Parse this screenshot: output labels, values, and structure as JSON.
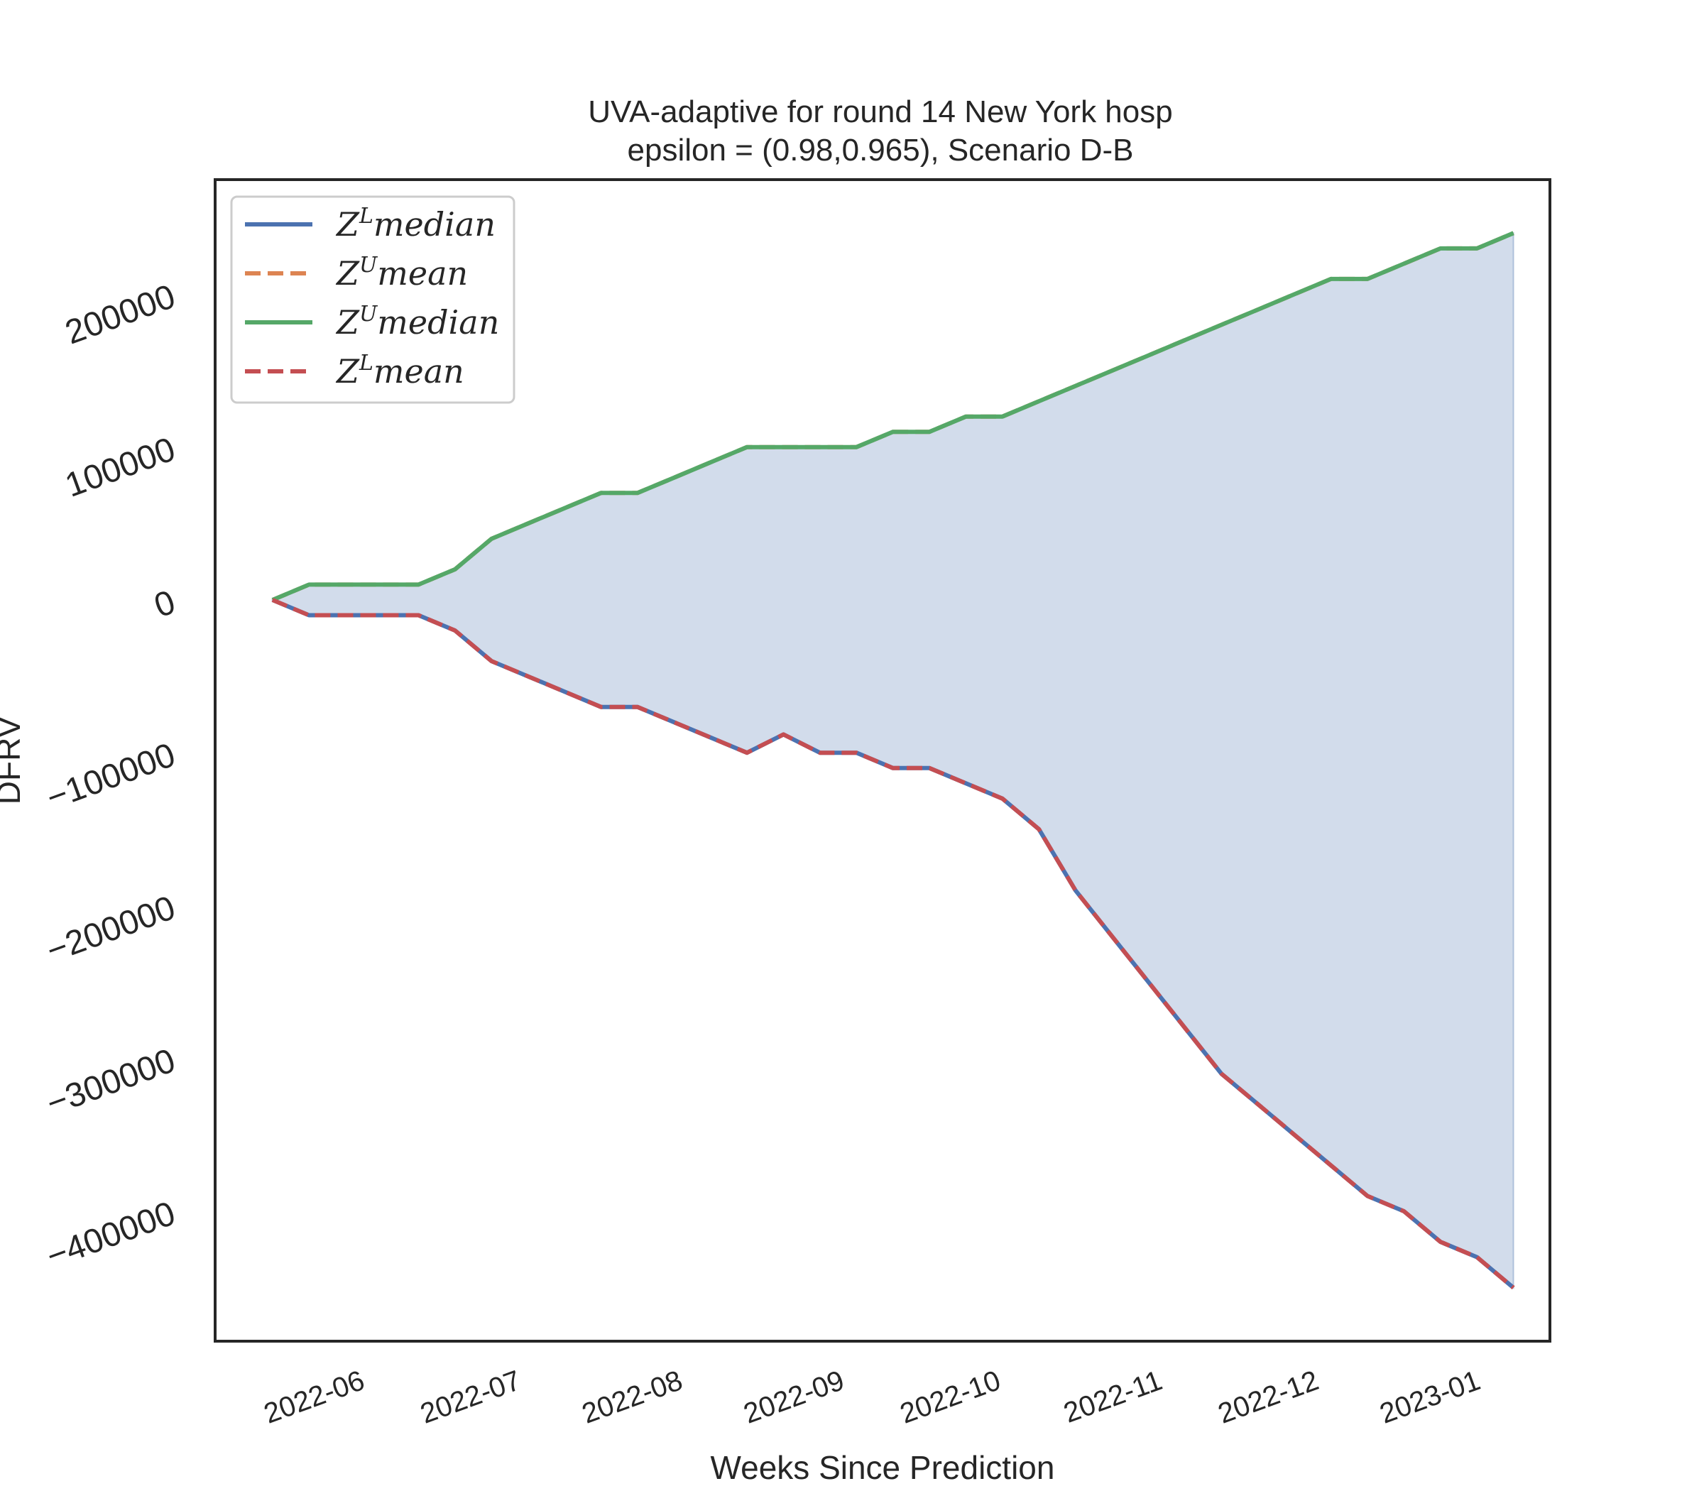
{
  "chart_data": {
    "type": "line",
    "title": "UVA-adaptive for round 14 New York  hosp",
    "subtitle": "epsilon = (0.98,0.965), Scenario D-B",
    "xlabel": "Weeks Since Prediction",
    "ylabel": "DFRV",
    "x_ticks": [
      "2022-06",
      "2022-07",
      "2022-08",
      "2022-09",
      "2022-10",
      "2022-11",
      "2022-12",
      "2023-01"
    ],
    "y_ticks": [
      200000,
      100000,
      0,
      -100000,
      -200000,
      -300000,
      -400000
    ],
    "y_tick_labels": [
      "200000",
      "100000",
      "0",
      "−100000",
      "−200000",
      "−300000",
      "−400000"
    ],
    "ylim": [
      -485000,
      275000
    ],
    "xlim": [
      "2022-05-03",
      "2023-01-14"
    ],
    "grid": false,
    "legend_position": "upper left",
    "x": [
      "2022-05-14",
      "2022-05-21",
      "2022-05-28",
      "2022-06-04",
      "2022-06-11",
      "2022-06-18",
      "2022-06-25",
      "2022-07-02",
      "2022-07-09",
      "2022-07-16",
      "2022-07-23",
      "2022-07-30",
      "2022-08-06",
      "2022-08-13",
      "2022-08-20",
      "2022-08-27",
      "2022-09-03",
      "2022-09-10",
      "2022-09-17",
      "2022-09-24",
      "2022-10-01",
      "2022-10-08",
      "2022-10-15",
      "2022-10-22",
      "2022-10-29",
      "2022-11-05",
      "2022-11-12",
      "2022-11-19",
      "2022-11-26",
      "2022-12-03",
      "2022-12-10",
      "2022-12-17",
      "2022-12-24",
      "2022-12-31",
      "2023-01-07"
    ],
    "series": [
      {
        "name": "median",
        "label_base": "Z",
        "label_sup": "L",
        "label_rest": "median",
        "color": "#4c72b0",
        "dash": "solid",
        "values": [
          0,
          -10000,
          -10000,
          -10000,
          -10000,
          -20000,
          -40000,
          -50000,
          -60000,
          -70000,
          -70000,
          -80000,
          -90000,
          -100000,
          -88000,
          -100000,
          -100000,
          -110000,
          -110000,
          -120000,
          -130000,
          -150000,
          -190000,
          -220000,
          -250000,
          -280000,
          -310000,
          -330000,
          -350000,
          -370000,
          -390000,
          -400000,
          -420000,
          -430000,
          -450000
        ]
      },
      {
        "name": "mean",
        "label_base": "Z",
        "label_sup": "U",
        "label_rest": "mean",
        "color": "#dd8452",
        "dash": "dashed",
        "values": [
          0,
          10000,
          10000,
          10000,
          10000,
          20000,
          40000,
          50000,
          60000,
          70000,
          70000,
          80000,
          90000,
          100000,
          100000,
          100000,
          100000,
          110000,
          110000,
          120000,
          120000,
          130000,
          140000,
          150000,
          160000,
          170000,
          180000,
          190000,
          200000,
          210000,
          210000,
          220000,
          230000,
          230000,
          240000
        ]
      },
      {
        "name": "median",
        "label_base": "Z",
        "label_sup": "U",
        "label_rest": "median",
        "color": "#55a868",
        "dash": "solid",
        "values": [
          0,
          10000,
          10000,
          10000,
          10000,
          20000,
          40000,
          50000,
          60000,
          70000,
          70000,
          80000,
          90000,
          100000,
          100000,
          100000,
          100000,
          110000,
          110000,
          120000,
          120000,
          130000,
          140000,
          150000,
          160000,
          170000,
          180000,
          190000,
          200000,
          210000,
          210000,
          220000,
          230000,
          230000,
          240000
        ]
      },
      {
        "name": "mean",
        "label_base": "Z",
        "label_sup": "L",
        "label_rest": "mean",
        "color": "#c44e52",
        "dash": "dashed",
        "values": [
          0,
          -10000,
          -10000,
          -10000,
          -10000,
          -20000,
          -40000,
          -50000,
          -60000,
          -70000,
          -70000,
          -80000,
          -90000,
          -100000,
          -88000,
          -100000,
          -100000,
          -110000,
          -110000,
          -120000,
          -130000,
          -150000,
          -190000,
          -220000,
          -250000,
          -280000,
          -310000,
          -330000,
          -350000,
          -370000,
          -390000,
          -400000,
          -420000,
          -430000,
          -450000
        ]
      }
    ],
    "fill_between": {
      "lower_series": 0,
      "upper_series": 2,
      "color": "#4c72b0",
      "opacity": 0.25
    }
  }
}
